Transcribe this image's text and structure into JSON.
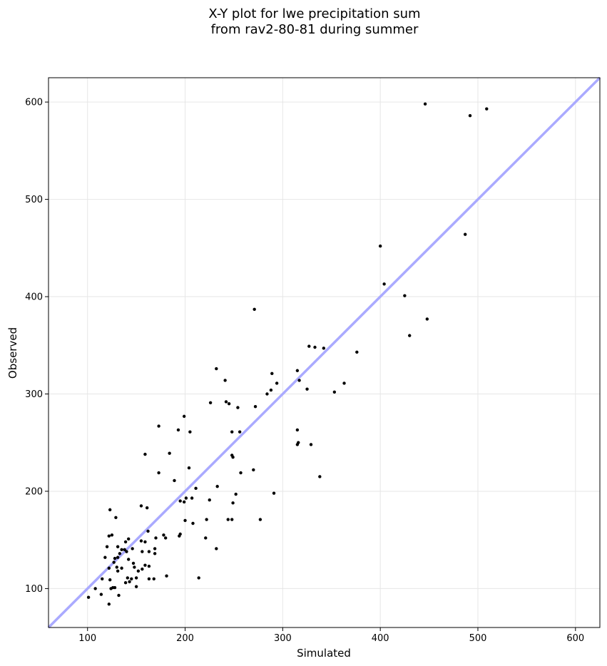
{
  "chart_data": {
    "type": "scatter",
    "title_lines": [
      "X-Y plot for lwe precipitation sum",
      "from rav2-80-81 during summer"
    ],
    "xlabel": "Simulated",
    "ylabel": "Observed",
    "xlim": [
      60,
      625
    ],
    "ylim": [
      60,
      625
    ],
    "xticks": [
      100,
      200,
      300,
      400,
      500,
      600
    ],
    "yticks": [
      100,
      200,
      300,
      400,
      500,
      600
    ],
    "grid": true,
    "reference_line": {
      "label": "1:1",
      "color": "#aaaaff"
    },
    "point_color": "#000000",
    "points": [
      [
        446,
        598
      ],
      [
        492,
        586
      ],
      [
        509,
        593
      ],
      [
        487,
        464
      ],
      [
        400,
        452
      ],
      [
        404,
        413
      ],
      [
        425,
        401
      ],
      [
        448,
        377
      ],
      [
        430,
        360
      ],
      [
        271,
        387
      ],
      [
        327,
        349
      ],
      [
        333,
        348
      ],
      [
        342,
        347
      ],
      [
        376,
        343
      ],
      [
        315,
        324
      ],
      [
        289,
        321
      ],
      [
        232,
        326
      ],
      [
        241,
        314
      ],
      [
        317,
        314
      ],
      [
        294,
        311
      ],
      [
        325,
        305
      ],
      [
        288,
        304
      ],
      [
        284,
        300
      ],
      [
        353,
        302
      ],
      [
        363,
        311
      ],
      [
        226,
        291
      ],
      [
        242,
        292
      ],
      [
        245,
        290
      ],
      [
        254,
        286
      ],
      [
        272,
        287
      ],
      [
        199,
        277
      ],
      [
        173,
        267
      ],
      [
        193,
        263
      ],
      [
        205,
        261
      ],
      [
        248,
        261
      ],
      [
        256,
        261
      ],
      [
        315,
        263
      ],
      [
        315,
        248
      ],
      [
        316,
        250
      ],
      [
        329,
        248
      ],
      [
        159,
        238
      ],
      [
        184,
        239
      ],
      [
        248,
        237
      ],
      [
        249,
        235
      ],
      [
        204,
        224
      ],
      [
        173,
        219
      ],
      [
        257,
        219
      ],
      [
        270,
        222
      ],
      [
        338,
        215
      ],
      [
        189,
        211
      ],
      [
        211,
        203
      ],
      [
        233,
        205
      ],
      [
        252,
        197
      ],
      [
        291,
        198
      ],
      [
        155,
        185
      ],
      [
        161,
        183
      ],
      [
        195,
        190
      ],
      [
        199,
        189
      ],
      [
        201,
        193
      ],
      [
        207,
        193
      ],
      [
        225,
        191
      ],
      [
        249,
        188
      ],
      [
        123,
        181
      ],
      [
        129,
        173
      ],
      [
        200,
        170
      ],
      [
        208,
        167
      ],
      [
        222,
        171
      ],
      [
        244,
        171
      ],
      [
        248,
        171
      ],
      [
        277,
        171
      ],
      [
        162,
        159
      ],
      [
        194,
        154
      ],
      [
        195,
        156
      ],
      [
        178,
        155
      ],
      [
        180,
        152
      ],
      [
        221,
        152
      ],
      [
        122,
        154
      ],
      [
        125,
        155
      ],
      [
        142,
        151
      ],
      [
        155,
        149
      ],
      [
        139,
        148
      ],
      [
        120,
        143
      ],
      [
        131,
        143
      ],
      [
        135,
        140
      ],
      [
        138,
        140
      ],
      [
        133,
        136
      ],
      [
        146,
        141
      ],
      [
        156,
        138
      ],
      [
        159,
        148
      ],
      [
        163,
        138
      ],
      [
        169,
        141
      ],
      [
        169,
        136
      ],
      [
        170,
        152
      ],
      [
        118,
        132
      ],
      [
        128,
        131
      ],
      [
        131,
        132
      ],
      [
        142,
        130
      ],
      [
        140,
        138
      ],
      [
        127,
        127
      ],
      [
        122,
        121
      ],
      [
        130,
        122
      ],
      [
        131,
        118
      ],
      [
        135,
        121
      ],
      [
        147,
        126
      ],
      [
        148,
        122
      ],
      [
        152,
        118
      ],
      [
        156,
        120
      ],
      [
        159,
        124
      ],
      [
        163,
        123
      ],
      [
        232,
        141
      ],
      [
        115,
        110
      ],
      [
        123,
        109
      ],
      [
        126,
        101
      ],
      [
        139,
        106
      ],
      [
        141,
        111
      ],
      [
        143,
        107
      ],
      [
        145,
        110
      ],
      [
        150,
        111
      ],
      [
        163,
        110
      ],
      [
        168,
        110
      ],
      [
        181,
        113
      ],
      [
        214,
        111
      ],
      [
        108,
        100
      ],
      [
        101,
        91
      ],
      [
        114,
        94
      ],
      [
        124,
        100
      ],
      [
        128,
        101
      ],
      [
        132,
        93
      ],
      [
        122,
        84
      ],
      [
        150,
        102
      ]
    ]
  }
}
